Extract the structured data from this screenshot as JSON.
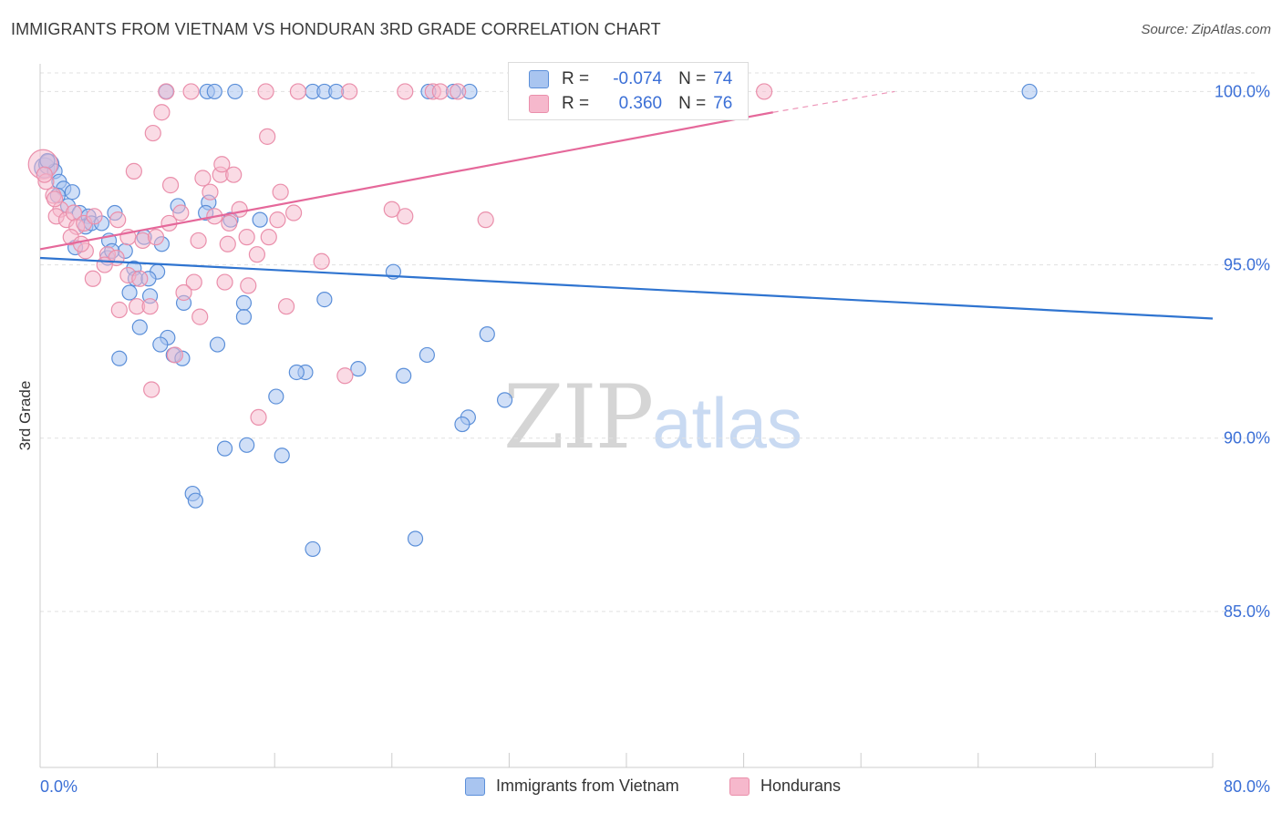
{
  "header": {
    "title": "IMMIGRANTS FROM VIETNAM VS HONDURAN 3RD GRADE CORRELATION CHART",
    "source": "Source: ZipAtlas.com"
  },
  "watermark": {
    "zip": "ZIP",
    "atlas": "atlas"
  },
  "legend_top": {
    "rows": [
      {
        "r_label": "R =",
        "r_value": "-0.074",
        "n_label": "N =",
        "n_value": "74"
      },
      {
        "r_label": "R =",
        "r_value": "0.360",
        "n_label": "N =",
        "n_value": "76"
      }
    ]
  },
  "colors": {
    "vietnam_fill": "#a9c5f0",
    "vietnam_stroke": "#5b8fd9",
    "vietnam_line": "#2f74d0",
    "honduran_fill": "#f6b8cc",
    "honduran_stroke": "#ea8fab",
    "honduran_line": "#e5689a",
    "tick_label": "#3b6fd6",
    "grid": "#e1e1e1"
  },
  "chart_data": {
    "type": "scatter",
    "title": "IMMIGRANTS FROM VIETNAM VS HONDURAN 3RD GRADE CORRELATION CHART",
    "xlabel": "",
    "ylabel": "3rd Grade",
    "xlim": [
      0,
      80
    ],
    "ylim": [
      80.5,
      100.8
    ],
    "x_tick_labels": [
      "0.0%",
      "80.0%"
    ],
    "y_ticks": [
      85,
      90,
      95,
      100
    ],
    "y_tick_labels": [
      "85.0%",
      "90.0%",
      "95.0%",
      "100.0%"
    ],
    "grid": true,
    "legend_position": "bottom",
    "series": [
      {
        "name": "Immigrants from Vietnam",
        "r": -0.074,
        "n": 74,
        "trend": {
          "x": [
            0,
            80
          ],
          "y": [
            95.2,
            93.45
          ]
        },
        "points": [
          [
            0.3,
            97.8
          ],
          [
            0.6,
            97.9
          ],
          [
            1.0,
            97.7
          ],
          [
            1.3,
            97.4
          ],
          [
            1.6,
            97.2
          ],
          [
            2.2,
            97.1
          ],
          [
            1.9,
            96.7
          ],
          [
            2.7,
            96.5
          ],
          [
            3.3,
            96.4
          ],
          [
            5.1,
            96.5
          ],
          [
            3.1,
            96.1
          ],
          [
            3.5,
            96.2
          ],
          [
            4.2,
            96.2
          ],
          [
            4.7,
            95.7
          ],
          [
            5.8,
            95.4
          ],
          [
            4.6,
            95.2
          ],
          [
            7.1,
            95.8
          ],
          [
            8.3,
            95.6
          ],
          [
            4.9,
            95.4
          ],
          [
            6.4,
            94.9
          ],
          [
            8.0,
            94.8
          ],
          [
            6.5,
            94.6
          ],
          [
            7.4,
            94.6
          ],
          [
            6.1,
            94.2
          ],
          [
            7.5,
            94.1
          ],
          [
            9.8,
            93.9
          ],
          [
            13.9,
            93.9
          ],
          [
            13.9,
            93.5
          ],
          [
            6.8,
            93.2
          ],
          [
            8.7,
            92.9
          ],
          [
            8.2,
            92.7
          ],
          [
            12.1,
            92.7
          ],
          [
            5.4,
            92.3
          ],
          [
            9.1,
            92.4
          ],
          [
            9.7,
            92.3
          ],
          [
            18.1,
            91.9
          ],
          [
            17.5,
            91.9
          ],
          [
            21.7,
            92.0
          ],
          [
            24.8,
            91.8
          ],
          [
            26.4,
            92.4
          ],
          [
            30.5,
            93.0
          ],
          [
            16.1,
            91.2
          ],
          [
            29.2,
            90.6
          ],
          [
            28.8,
            90.4
          ],
          [
            31.7,
            91.1
          ],
          [
            12.6,
            89.7
          ],
          [
            14.1,
            89.8
          ],
          [
            16.5,
            89.5
          ],
          [
            10.4,
            88.4
          ],
          [
            10.6,
            88.2
          ],
          [
            18.6,
            86.8
          ],
          [
            25.6,
            87.1
          ],
          [
            9.4,
            96.7
          ],
          [
            11.5,
            96.8
          ],
          [
            11.3,
            96.5
          ],
          [
            13.0,
            96.3
          ],
          [
            15.0,
            96.3
          ],
          [
            24.1,
            94.8
          ],
          [
            19.4,
            94.0
          ],
          [
            8.6,
            100.0
          ],
          [
            11.4,
            100.0
          ],
          [
            11.9,
            100.0
          ],
          [
            13.3,
            100.0
          ],
          [
            18.6,
            100.0
          ],
          [
            19.4,
            100.0
          ],
          [
            20.2,
            100.0
          ],
          [
            26.5,
            100.0
          ],
          [
            28.2,
            100.0
          ],
          [
            29.3,
            100.0
          ],
          [
            42.5,
            100.0
          ],
          [
            67.5,
            100.0
          ],
          [
            0.5,
            98.0
          ],
          [
            1.2,
            97.0
          ],
          [
            2.4,
            95.5
          ]
        ]
      },
      {
        "name": "Hondurans",
        "r": 0.36,
        "n": 76,
        "trend": {
          "x": [
            0,
            50
          ],
          "y": [
            95.45,
            99.4
          ]
        },
        "trend_dashed": {
          "x": [
            50,
            58.3
          ],
          "y": [
            99.4,
            100.0
          ]
        },
        "points": [
          [
            0.2,
            97.9
          ],
          [
            0.4,
            97.4
          ],
          [
            0.9,
            97.0
          ],
          [
            1.4,
            96.6
          ],
          [
            1.1,
            96.4
          ],
          [
            1.8,
            96.3
          ],
          [
            2.3,
            96.5
          ],
          [
            2.5,
            96.1
          ],
          [
            3.0,
            96.2
          ],
          [
            3.7,
            96.4
          ],
          [
            2.1,
            95.8
          ],
          [
            3.1,
            95.4
          ],
          [
            4.6,
            95.3
          ],
          [
            5.2,
            95.2
          ],
          [
            4.4,
            95.0
          ],
          [
            6.0,
            95.8
          ],
          [
            7.0,
            95.7
          ],
          [
            7.9,
            95.8
          ],
          [
            6.0,
            94.7
          ],
          [
            6.8,
            94.6
          ],
          [
            3.6,
            94.6
          ],
          [
            5.4,
            93.7
          ],
          [
            6.6,
            93.8
          ],
          [
            7.5,
            93.8
          ],
          [
            9.2,
            92.4
          ],
          [
            7.6,
            91.4
          ],
          [
            8.8,
            96.2
          ],
          [
            9.6,
            96.5
          ],
          [
            10.8,
            95.7
          ],
          [
            12.8,
            95.6
          ],
          [
            14.1,
            95.8
          ],
          [
            15.6,
            95.8
          ],
          [
            14.8,
            95.3
          ],
          [
            10.5,
            94.5
          ],
          [
            12.6,
            94.5
          ],
          [
            14.2,
            94.4
          ],
          [
            10.9,
            93.5
          ],
          [
            16.2,
            96.3
          ],
          [
            17.3,
            96.5
          ],
          [
            19.2,
            95.1
          ],
          [
            16.8,
            93.8
          ],
          [
            20.8,
            91.8
          ],
          [
            14.9,
            90.6
          ],
          [
            11.1,
            97.5
          ],
          [
            11.6,
            97.1
          ],
          [
            12.3,
            97.6
          ],
          [
            13.2,
            97.6
          ],
          [
            8.9,
            97.3
          ],
          [
            6.4,
            97.7
          ],
          [
            12.4,
            97.9
          ],
          [
            13.6,
            96.6
          ],
          [
            12.9,
            96.2
          ],
          [
            11.9,
            96.4
          ],
          [
            16.4,
            97.1
          ],
          [
            15.5,
            98.7
          ],
          [
            8.3,
            99.4
          ],
          [
            7.7,
            98.8
          ],
          [
            24.0,
            96.6
          ],
          [
            24.9,
            96.4
          ],
          [
            30.4,
            96.3
          ],
          [
            8.6,
            100.0
          ],
          [
            10.3,
            100.0
          ],
          [
            15.4,
            100.0
          ],
          [
            17.6,
            100.0
          ],
          [
            21.1,
            100.0
          ],
          [
            24.9,
            100.0
          ],
          [
            26.8,
            100.0
          ],
          [
            27.3,
            100.0
          ],
          [
            28.5,
            100.0
          ],
          [
            41.9,
            100.0
          ],
          [
            49.4,
            100.0
          ],
          [
            0.3,
            97.6
          ],
          [
            1.0,
            96.9
          ],
          [
            2.8,
            95.6
          ],
          [
            5.3,
            96.3
          ],
          [
            9.8,
            94.2
          ]
        ]
      }
    ]
  },
  "legend_bottom": {
    "items": [
      {
        "label": "Immigrants from Vietnam"
      },
      {
        "label": "Hondurans"
      }
    ]
  }
}
